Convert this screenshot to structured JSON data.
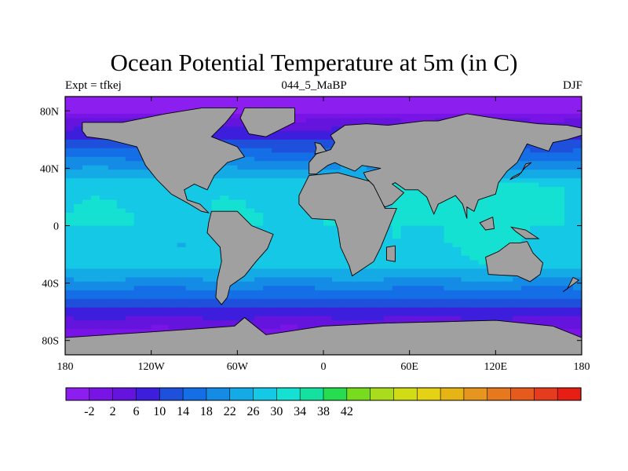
{
  "title": "Ocean Potential Temperature at 5m (in C)",
  "left_label": "Expt = tfkej",
  "center_label": "044_5_MaBP",
  "right_label": "DJF",
  "map_data": {
    "type": "heatmap",
    "projection": "cylindrical-equidistant",
    "lon_range": [
      -180,
      180
    ],
    "lat_range": [
      -90,
      90
    ],
    "x_ticks": [
      {
        "lon": -180,
        "label": "180"
      },
      {
        "lon": -120,
        "label": "120W"
      },
      {
        "lon": -60,
        "label": "60W"
      },
      {
        "lon": 0,
        "label": "0"
      },
      {
        "lon": 60,
        "label": "60E"
      },
      {
        "lon": 120,
        "label": "120E"
      },
      {
        "lon": 180,
        "label": "180"
      }
    ],
    "y_ticks": [
      {
        "lat": 80,
        "label": "80N"
      },
      {
        "lat": 40,
        "label": "40N"
      },
      {
        "lat": 0,
        "label": "0"
      },
      {
        "lat": -40,
        "label": "40S"
      },
      {
        "lat": -80,
        "label": "80S"
      }
    ],
    "land_color": "#A0A0A0",
    "colorbar": {
      "colors": [
        "#8C1EF0",
        "#7814E6",
        "#6414DC",
        "#3C1EDC",
        "#1E50DC",
        "#146EE6",
        "#148CE6",
        "#14AAE6",
        "#14C8E6",
        "#14E1D2",
        "#14E1A0",
        "#28DC50",
        "#78DC1E",
        "#AADC1E",
        "#D2DC14",
        "#E6D214",
        "#E6B414",
        "#E6961E",
        "#E6781E",
        "#E65A1E",
        "#E63C1E",
        "#E61E14"
      ],
      "label_values": [
        -2,
        2,
        6,
        10,
        14,
        18,
        22,
        26,
        30,
        34,
        38,
        42
      ],
      "labels": [
        "-2",
        "2",
        "6",
        "10",
        "14",
        "18",
        "22",
        "26",
        "30",
        "34",
        "38",
        "42"
      ]
    }
  }
}
